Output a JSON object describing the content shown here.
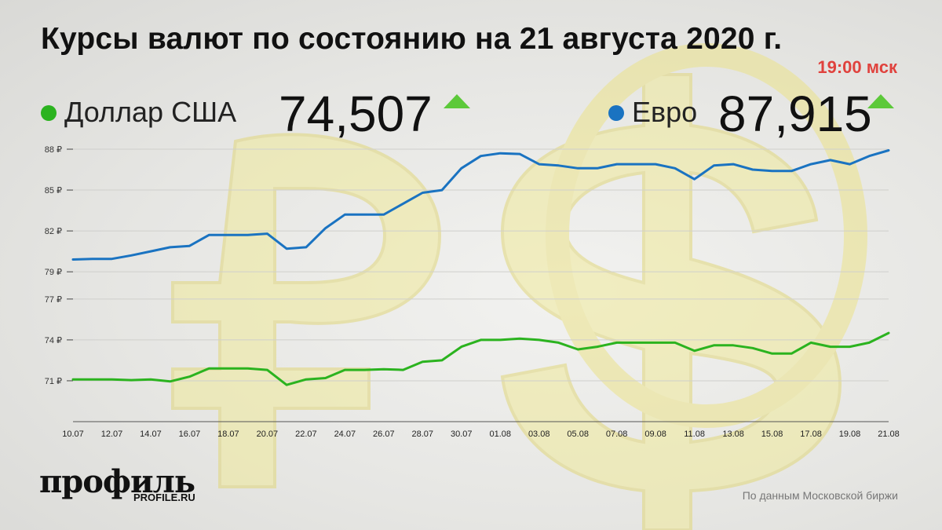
{
  "header": {
    "title": "Курсы валют по состоянию на 21 августа 2020 г.",
    "time": "19:00 мск"
  },
  "legend": {
    "usd": {
      "name": "Доллар США",
      "value": "74,507",
      "trend": "up"
    },
    "eur": {
      "name": "Евро",
      "value": "87,915",
      "trend": "up"
    }
  },
  "colors": {
    "usd": "#2bb31f",
    "eur": "#1a73c1",
    "up_arrow": "#5cc93a",
    "accent": "#e0423d",
    "grid": "#cfcfcc",
    "background_art": "#f0ea9a"
  },
  "chart_data": {
    "type": "line",
    "title": "Курсы валют по состоянию на 21 августа 2020 г.",
    "xlabel": "",
    "ylabel": "",
    "x_tick_labels": [
      "10.07",
      "12.07",
      "14.07",
      "16.07",
      "18.07",
      "20.07",
      "22.07",
      "24.07",
      "26.07",
      "28.07",
      "30.07",
      "01.08",
      "03.08",
      "05.08",
      "07.08",
      "09.08",
      "11.08",
      "13.08",
      "15.08",
      "17.08",
      "19.08",
      "21.08"
    ],
    "y_tick_labels": [
      "88 ₽",
      "85 ₽",
      "82 ₽",
      "79 ₽",
      "77 ₽",
      "74 ₽",
      "71 ₽"
    ],
    "y_tick_values": [
      88,
      85,
      82,
      79,
      77,
      74,
      71
    ],
    "ylim": [
      68,
      88
    ],
    "grid": true,
    "x": [
      "10.07",
      "11.07",
      "12.07",
      "13.07",
      "14.07",
      "15.07",
      "16.07",
      "17.07",
      "18.07",
      "19.07",
      "20.07",
      "21.07",
      "22.07",
      "23.07",
      "24.07",
      "25.07",
      "26.07",
      "27.07",
      "28.07",
      "29.07",
      "30.07",
      "31.07",
      "01.08",
      "02.08",
      "03.08",
      "04.08",
      "05.08",
      "06.08",
      "07.08",
      "08.08",
      "09.08",
      "10.08",
      "11.08",
      "12.08",
      "13.08",
      "14.08",
      "15.08",
      "16.08",
      "17.08",
      "18.08",
      "19.08",
      "20.08",
      "21.08"
    ],
    "series": [
      {
        "name": "Евро",
        "color": "#1a73c1",
        "values": [
          79.9,
          79.95,
          79.95,
          80.2,
          80.5,
          80.8,
          80.9,
          81.7,
          81.7,
          81.7,
          81.8,
          80.7,
          80.8,
          82.2,
          83.2,
          83.2,
          83.2,
          84.0,
          84.8,
          85.0,
          86.6,
          87.5,
          87.7,
          87.65,
          86.9,
          86.8,
          86.6,
          86.6,
          86.9,
          86.9,
          86.9,
          86.6,
          85.8,
          86.8,
          86.9,
          86.5,
          86.4,
          86.4,
          86.9,
          87.2,
          86.9,
          87.5,
          87.915
        ]
      },
      {
        "name": "Доллар США",
        "color": "#2bb31f",
        "values": [
          71.1,
          71.1,
          71.1,
          71.05,
          71.1,
          70.95,
          71.3,
          71.9,
          71.9,
          71.9,
          71.8,
          70.7,
          71.1,
          71.2,
          71.8,
          71.8,
          71.85,
          71.8,
          72.4,
          72.5,
          73.5,
          74.0,
          74.0,
          74.1,
          74.0,
          73.8,
          73.3,
          73.5,
          73.8,
          73.8,
          73.8,
          73.8,
          73.2,
          73.6,
          73.6,
          73.4,
          73.0,
          73.0,
          73.8,
          73.5,
          73.5,
          73.8,
          74.507
        ]
      }
    ]
  },
  "footer": {
    "logo": "профиль",
    "logo_sub": "PROFILE.RU",
    "source": "По данным Московской биржи"
  }
}
